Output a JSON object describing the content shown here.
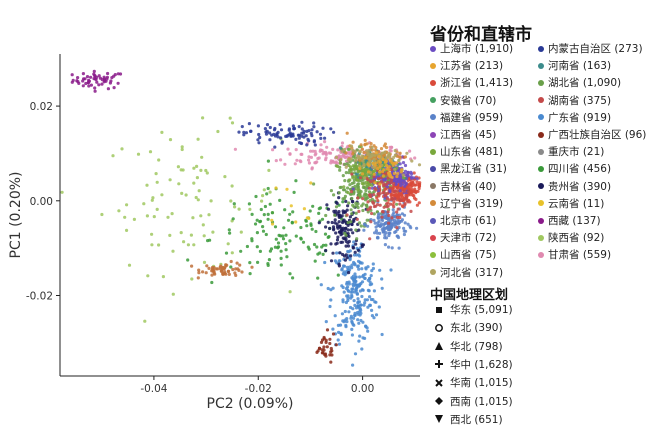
{
  "chart_data": {
    "type": "scatter",
    "title": "",
    "xlabel": "PC2 (0.09%)",
    "ylabel": "PC1 (0.20%)",
    "xlim": [
      -0.058,
      0.011
    ],
    "ylim": [
      -0.037,
      0.031
    ],
    "x_ticks": [
      -0.04,
      -0.02,
      0.0
    ],
    "x_tick_labels": [
      "-0.04",
      "-0.02",
      "0.00"
    ],
    "y_ticks": [
      0.02,
      0.0,
      -0.02
    ],
    "y_tick_labels": [
      "0.02",
      "0.00",
      "-0.02"
    ],
    "grid": false,
    "legend_position": "right",
    "province_legend_title": "省份和直辖市",
    "region_legend_title": "中国地理区划",
    "provinces": [
      {
        "label": "上海市 (1,910)",
        "color": "#6a4cc2"
      },
      {
        "label": "江苏省 (213)",
        "color": "#e7a52f"
      },
      {
        "label": "浙江省 (1,413)",
        "color": "#d94a3a"
      },
      {
        "label": "安徽省 (70)",
        "color": "#45a060"
      },
      {
        "label": "福建省 (959)",
        "color": "#5a82c9"
      },
      {
        "label": "江西省 (45)",
        "color": "#8c44b5"
      },
      {
        "label": "山东省 (481)",
        "color": "#79a83c"
      },
      {
        "label": "黑龙江省 (31)",
        "color": "#4a4aa8"
      },
      {
        "label": "吉林省 (40)",
        "color": "#8a7866"
      },
      {
        "label": "辽宁省 (319)",
        "color": "#d38a3a"
      },
      {
        "label": "北京市 (61)",
        "color": "#5a58b8"
      },
      {
        "label": "天津市 (72)",
        "color": "#d9434d"
      },
      {
        "label": "山西省 (75)",
        "color": "#8cbf3c"
      },
      {
        "label": "河北省 (317)",
        "color": "#b0a560"
      },
      {
        "label": "内蒙古自治区 (273)",
        "color": "#2a3a96"
      },
      {
        "label": "河南省 (163)",
        "color": "#3c8c8c"
      },
      {
        "label": "湖北省 (1,090)",
        "color": "#6aa04a"
      },
      {
        "label": "湖南省 (375)",
        "color": "#c44a4a"
      },
      {
        "label": "广东省 (919)",
        "color": "#4a8ad0"
      },
      {
        "label": "广西壮族自治区 (96)",
        "color": "#8a2a1a"
      },
      {
        "label": "重庆市 (21)",
        "color": "#8a8a8a"
      },
      {
        "label": "四川省 (456)",
        "color": "#3a9a3a"
      },
      {
        "label": "贵州省 (390)",
        "color": "#1a1a5a"
      },
      {
        "label": "云南省 (11)",
        "color": "#e8c22a"
      },
      {
        "label": "西藏 (137)",
        "color": "#8a1a8a"
      },
      {
        "label": "陕西省 (92)",
        "color": "#a0c860"
      },
      {
        "label": "甘肃省 (559)",
        "color": "#e08ab0"
      }
    ],
    "regions": [
      {
        "label": "华东 (5,091)",
        "symbol": "square"
      },
      {
        "label": "东北 (390)",
        "symbol": "circle"
      },
      {
        "label": "华北 (798)",
        "symbol": "triangle"
      },
      {
        "label": "华中 (1,628)",
        "symbol": "plus"
      },
      {
        "label": "华南 (1,015)",
        "symbol": "cross"
      },
      {
        "label": "西南 (1,015)",
        "symbol": "diamond"
      },
      {
        "label": "西北 (651)",
        "symbol": "down-triangle"
      }
    ],
    "clusters": [
      {
        "province": "西藏 (137)",
        "region": "西南 (1,015)",
        "cx": -0.0505,
        "cy": 0.0255,
        "sx": 0.0025,
        "sy": 0.0009,
        "n": 55,
        "color": "#8a1a8a"
      },
      {
        "province": "甘肃省 (559)",
        "region": "西北 (651)",
        "cx": -0.0035,
        "cy": 0.0095,
        "sx": 0.006,
        "sy": 0.0012,
        "n": 170,
        "color": "#e08ab0"
      },
      {
        "province": "陕西省 (92)",
        "region": "西北 (651)",
        "cx": -0.033,
        "cy": 0.0,
        "sx": 0.0085,
        "sy": 0.0075,
        "n": 95,
        "color": "#a0c860"
      },
      {
        "province": "四川省 (456)",
        "region": "西南 (1,015)",
        "cx": -0.015,
        "cy": -0.008,
        "sx": 0.007,
        "sy": 0.005,
        "n": 120,
        "color": "#3a9a3a"
      },
      {
        "province": "广西壮族自治区 (96)",
        "region": "华南 (1,015)",
        "cx": -0.0265,
        "cy": -0.0145,
        "sx": 0.0022,
        "sy": 0.0007,
        "n": 55,
        "color": "#c0703a"
      },
      {
        "province": "广东省 (919)",
        "region": "华南 (1,015)",
        "cx": -0.0015,
        "cy": -0.019,
        "sx": 0.0022,
        "sy": 0.0055,
        "n": 240,
        "color": "#4a8ad0"
      },
      {
        "province": "广西壮族自治区 (96)",
        "region": "华南 (1,015)",
        "cx": -0.0075,
        "cy": -0.031,
        "sx": 0.0012,
        "sy": 0.0016,
        "n": 30,
        "color": "#8a2a1a"
      },
      {
        "province": "内蒙古自治区 (273)",
        "region": "华北 (798)",
        "cx": -0.015,
        "cy": 0.014,
        "sx": 0.004,
        "sy": 0.0012,
        "n": 90,
        "color": "#2a3a96"
      },
      {
        "province": "贵州省 (390)",
        "region": "西南 (1,015)",
        "cx": -0.0035,
        "cy": -0.006,
        "sx": 0.0016,
        "sy": 0.0035,
        "n": 130,
        "color": "#1a1a5a"
      },
      {
        "province": "湖北省 (1,090)",
        "region": "华中 (1,628)",
        "cx": 0.0,
        "cy": 0.003,
        "sx": 0.0025,
        "sy": 0.0035,
        "n": 230,
        "color": "#6aa04a"
      },
      {
        "province": "福建省 (959)",
        "region": "华东 (5,091)",
        "cx": 0.005,
        "cy": -0.005,
        "sx": 0.0018,
        "sy": 0.002,
        "n": 150,
        "color": "#5a82c9"
      },
      {
        "province": "浙江省 (1,413)",
        "region": "华东 (5,091)",
        "cx": 0.0075,
        "cy": 0.0025,
        "sx": 0.0018,
        "sy": 0.0016,
        "n": 230,
        "color": "#d94a3a"
      },
      {
        "province": "上海市 (1,910)",
        "region": "华东 (5,091)",
        "cx": 0.0055,
        "cy": 0.0055,
        "sx": 0.0022,
        "sy": 0.002,
        "n": 180,
        "color": "#6a4cc2"
      },
      {
        "province": "河南省 (163)",
        "region": "华中 (1,628)",
        "cx": 0.0025,
        "cy": 0.008,
        "sx": 0.002,
        "sy": 0.0015,
        "n": 80,
        "color": "#3c8c8c"
      },
      {
        "province": "山东省 (481)",
        "region": "华东 (5,091)",
        "cx": 0.001,
        "cy": 0.0065,
        "sx": 0.0025,
        "sy": 0.002,
        "n": 110,
        "color": "#79a83c"
      },
      {
        "province": "湖南省 (375)",
        "region": "华中 (1,628)",
        "cx": 0.004,
        "cy": 0.001,
        "sx": 0.0025,
        "sy": 0.003,
        "n": 100,
        "color": "#c44a4a"
      },
      {
        "province": "辽宁省 (319)",
        "region": "东北 (390)",
        "cx": 0.002,
        "cy": 0.01,
        "sx": 0.0025,
        "sy": 0.0012,
        "n": 70,
        "color": "#d38a3a"
      },
      {
        "province": "河北省 (317)",
        "region": "华北 (798)",
        "cx": 0.001,
        "cy": 0.009,
        "sx": 0.003,
        "sy": 0.0014,
        "n": 70,
        "color": "#b0a560"
      },
      {
        "province": "江苏省 (213)",
        "region": "华东 (5,091)",
        "cx": 0.004,
        "cy": 0.007,
        "sx": 0.002,
        "sy": 0.0015,
        "n": 50,
        "color": "#e7a52f"
      },
      {
        "province": "云南省 (11)",
        "region": "西南 (1,015)",
        "cx": -0.014,
        "cy": -0.001,
        "sx": 0.005,
        "sy": 0.004,
        "n": 10,
        "color": "#e8c22a"
      }
    ]
  }
}
